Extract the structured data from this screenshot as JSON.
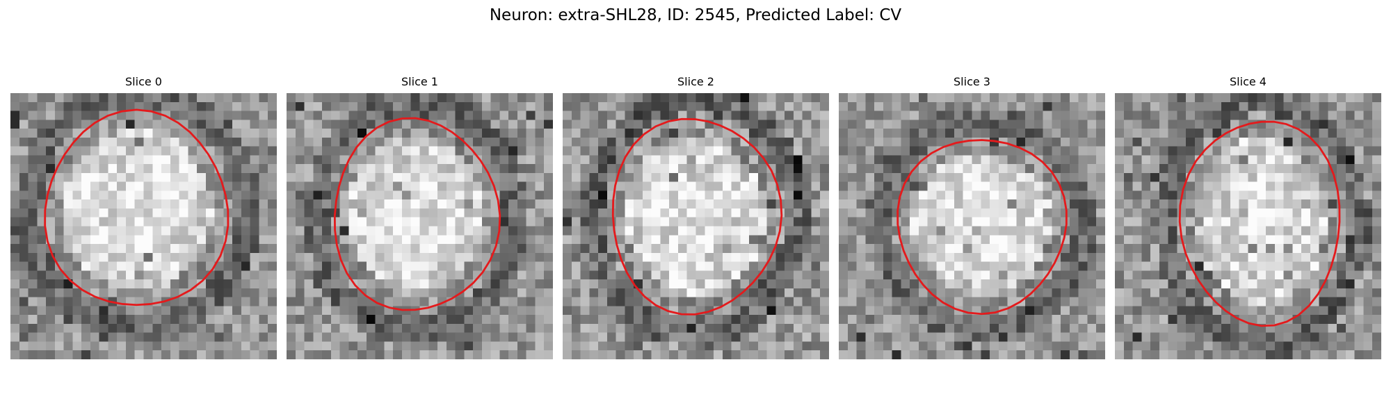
{
  "figure": {
    "title": "Neuron: extra-SHL28, ID: 2545, Predicted Label: CV",
    "outline_color": "#e41a1c",
    "panels": [
      {
        "title": "Slice 0",
        "seed": 11,
        "contrast": 0.95
      },
      {
        "title": "Slice 1",
        "seed": 23,
        "contrast": 1.0
      },
      {
        "title": "Slice 2",
        "seed": 37,
        "contrast": 1.1
      },
      {
        "title": "Slice 3",
        "seed": 41,
        "contrast": 0.9
      },
      {
        "title": "Slice 4",
        "seed": 59,
        "contrast": 1.05
      }
    ]
  }
}
